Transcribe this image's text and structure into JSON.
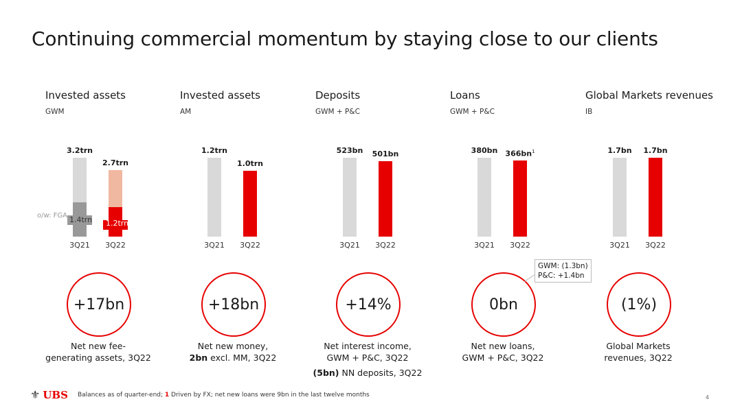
{
  "title": "Continuing commercial momentum by staying close to our clients",
  "colors": {
    "accent": "#e60000",
    "grey": "#d9d9d9",
    "light_red": "#f0b8a0",
    "dark_grey": "#999999"
  },
  "chart_data": [
    {
      "type": "bar",
      "title": "Invested assets",
      "subtitle": "GWM",
      "categories": [
        "3Q21",
        "3Q22"
      ],
      "unit": "trn",
      "values": [
        3.2,
        2.7
      ],
      "value_labels": [
        "3.2trn",
        "2.7trn"
      ],
      "overlay": {
        "note": "o/w: FGA",
        "values": [
          1.4,
          1.2
        ],
        "labels": [
          "1.4trn",
          "1.2trn"
        ]
      }
    },
    {
      "type": "bar",
      "title": "Invested assets",
      "subtitle": "AM",
      "categories": [
        "3Q21",
        "3Q22"
      ],
      "unit": "trn",
      "values": [
        1.2,
        1.0
      ],
      "value_labels": [
        "1.2trn",
        "1.0trn"
      ]
    },
    {
      "type": "bar",
      "title": "Deposits",
      "subtitle": "GWM + P&C",
      "categories": [
        "3Q21",
        "3Q22"
      ],
      "unit": "bn",
      "values": [
        523,
        501
      ],
      "value_labels": [
        "523bn",
        "501bn"
      ]
    },
    {
      "type": "bar",
      "title": "Loans",
      "subtitle": "GWM + P&C",
      "categories": [
        "3Q21",
        "3Q22"
      ],
      "unit": "bn",
      "values": [
        380,
        366
      ],
      "value_labels": [
        "380bn",
        "366bn"
      ],
      "footnote_marks": [
        "",
        "1"
      ]
    },
    {
      "type": "bar",
      "title": "Global Markets revenues",
      "subtitle": "IB",
      "categories": [
        "3Q21",
        "3Q22"
      ],
      "unit": "bn",
      "values": [
        1.7,
        1.7
      ],
      "value_labels": [
        "1.7bn",
        "1.7bn"
      ]
    }
  ],
  "kpis": [
    {
      "value": "+17bn",
      "label_lines": [
        "Net new fee-",
        "generating assets, 3Q22"
      ]
    },
    {
      "value": "+18bn",
      "label_line1": "Net new money,",
      "label_bold": "2bn",
      "label_rest": " excl. MM, 3Q22"
    },
    {
      "value": "+14%",
      "label_lines": [
        "Net interest income,",
        "GWM + P&C, 3Q22"
      ],
      "extra_bold": "(5bn)",
      "extra_rest": " NN deposits, 3Q22"
    },
    {
      "value": "0bn",
      "label_lines": [
        "Net new loans,",
        "GWM + P&C, 3Q22"
      ]
    },
    {
      "value": "(1%)",
      "label_lines": [
        "Global Markets",
        "revenues, 3Q22"
      ]
    }
  ],
  "callout": {
    "line1": "GWM: (1.3bn)",
    "line2": "P&C: +1.4bn"
  },
  "footer": {
    "logo": "UBS",
    "text_start": "Balances as of quarter-end; ",
    "fn_num": "1",
    "text_end": " Driven by FX; net new loans were 9bn in the last twelve months",
    "page": "4"
  }
}
